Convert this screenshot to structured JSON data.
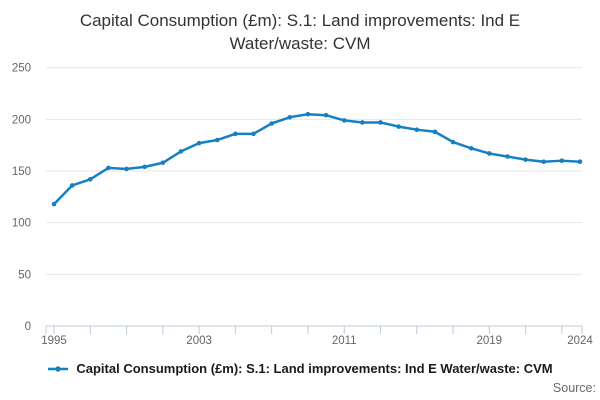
{
  "title": {
    "full": "Capital Consumption (£m): S.1: Land improvements: Ind E Water/waste: CVM",
    "lines": [
      "Capital Consumption (£m): S.1: Land improvements: Ind E",
      "Water/waste: CVM"
    ]
  },
  "legend": {
    "label": "Capital Consumption (£m): S.1: Land improvements: Ind E Water/waste: CVM"
  },
  "source": {
    "label": "Source:"
  },
  "colors": {
    "line": "#1680c4",
    "grid": "#e6e6e6",
    "axis": "#bccbd9",
    "tick_label": "#666666",
    "title_text": "#333333",
    "legend_text": "#1a1a1a",
    "source_text": "#6b6b6b"
  },
  "chart_data": {
    "type": "line",
    "title": "Capital Consumption (£m): S.1: Land improvements: Ind E Water/waste: CVM",
    "xlabel": "",
    "ylabel": "",
    "x": [
      1995,
      1996,
      1997,
      1998,
      1999,
      2000,
      2001,
      2002,
      2003,
      2004,
      2005,
      2006,
      2007,
      2008,
      2009,
      2010,
      2011,
      2012,
      2013,
      2014,
      2015,
      2016,
      2017,
      2018,
      2019,
      2020,
      2021,
      2022,
      2023,
      2024
    ],
    "series": [
      {
        "name": "Capital Consumption (£m): S.1: Land improvements: Ind E Water/waste: CVM",
        "color": "#1680c4",
        "values": [
          118,
          136,
          142,
          153,
          152,
          154,
          158,
          169,
          177,
          180,
          186,
          186,
          196,
          202,
          205,
          204,
          199,
          197,
          197,
          193,
          190,
          188,
          178,
          172,
          167,
          164,
          161,
          159,
          160,
          159
        ]
      }
    ],
    "ylim": [
      0,
      250
    ],
    "yticks": [
      0,
      50,
      100,
      150,
      200,
      250
    ],
    "xtick_labels": [
      "1995",
      "2003",
      "2011",
      "2019",
      "2024"
    ],
    "xtick_minor_step_years": 2,
    "grid": "horizontal",
    "legend_position": "bottom",
    "marker": "circle"
  }
}
